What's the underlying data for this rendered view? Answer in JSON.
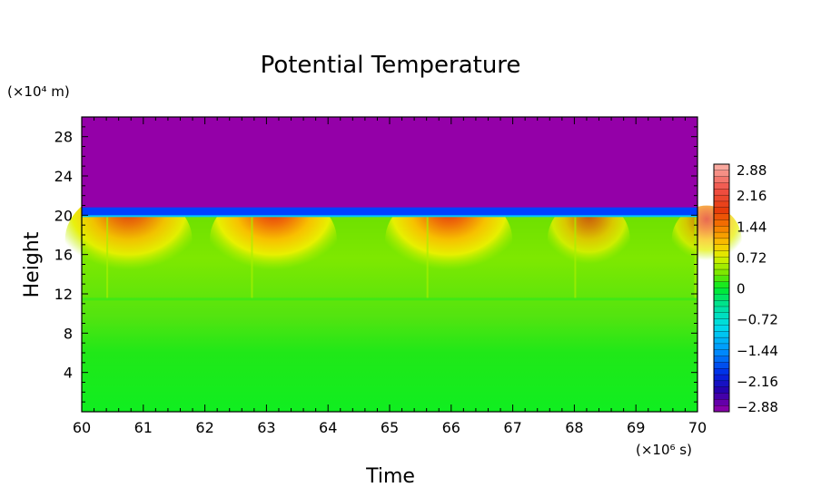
{
  "chart_data": {
    "type": "heatmap",
    "title": "Potential Temperature",
    "xlabel": "Time",
    "ylabel": "Height",
    "x_unit_label": "(×10⁶ s)",
    "y_unit_label": "(×10⁴ m)",
    "xlim": [
      60,
      70
    ],
    "ylim": [
      0,
      30
    ],
    "x_ticks": [
      "60",
      "61",
      "62",
      "63",
      "64",
      "65",
      "66",
      "67",
      "68",
      "69",
      "70"
    ],
    "y_ticks": [
      "4",
      "8",
      "12",
      "16",
      "20",
      "24",
      "28"
    ],
    "y_tick_values": [
      4,
      8,
      12,
      16,
      20,
      24,
      28
    ],
    "colorbar": {
      "min": -2.88,
      "max": 2.88,
      "tick_labels": [
        "2.88",
        "2.16",
        "1.44",
        "0.72",
        "0",
        "−0.72",
        "−1.44",
        "−2.16",
        "−2.88"
      ],
      "tick_values": [
        2.88,
        2.16,
        1.44,
        0.72,
        0,
        -0.72,
        -1.44,
        -2.16,
        -2.88
      ]
    },
    "colors": {
      "upper_layer": "#9400a8",
      "lower_layer": "#00ee20",
      "interface": "#0040ff"
    },
    "regions": [
      {
        "name": "upper layer",
        "y_from": 20.5,
        "y_to": 30,
        "value": -2.88
      },
      {
        "name": "middle layer",
        "y_from": 11.5,
        "y_to": 20,
        "value": 0.6
      },
      {
        "name": "lower layer",
        "y_from": 0,
        "y_to": 11.5,
        "value": 0.05
      }
    ],
    "interface_height": 20.3,
    "warm_events": [
      {
        "time": 60.4,
        "peak": 2.0
      },
      {
        "time": 62.75,
        "peak": 2.3
      },
      {
        "time": 65.6,
        "peak": 2.16
      },
      {
        "time": 68.0,
        "peak": 1.3
      },
      {
        "time": 69.95,
        "peak": 1.1
      }
    ]
  }
}
